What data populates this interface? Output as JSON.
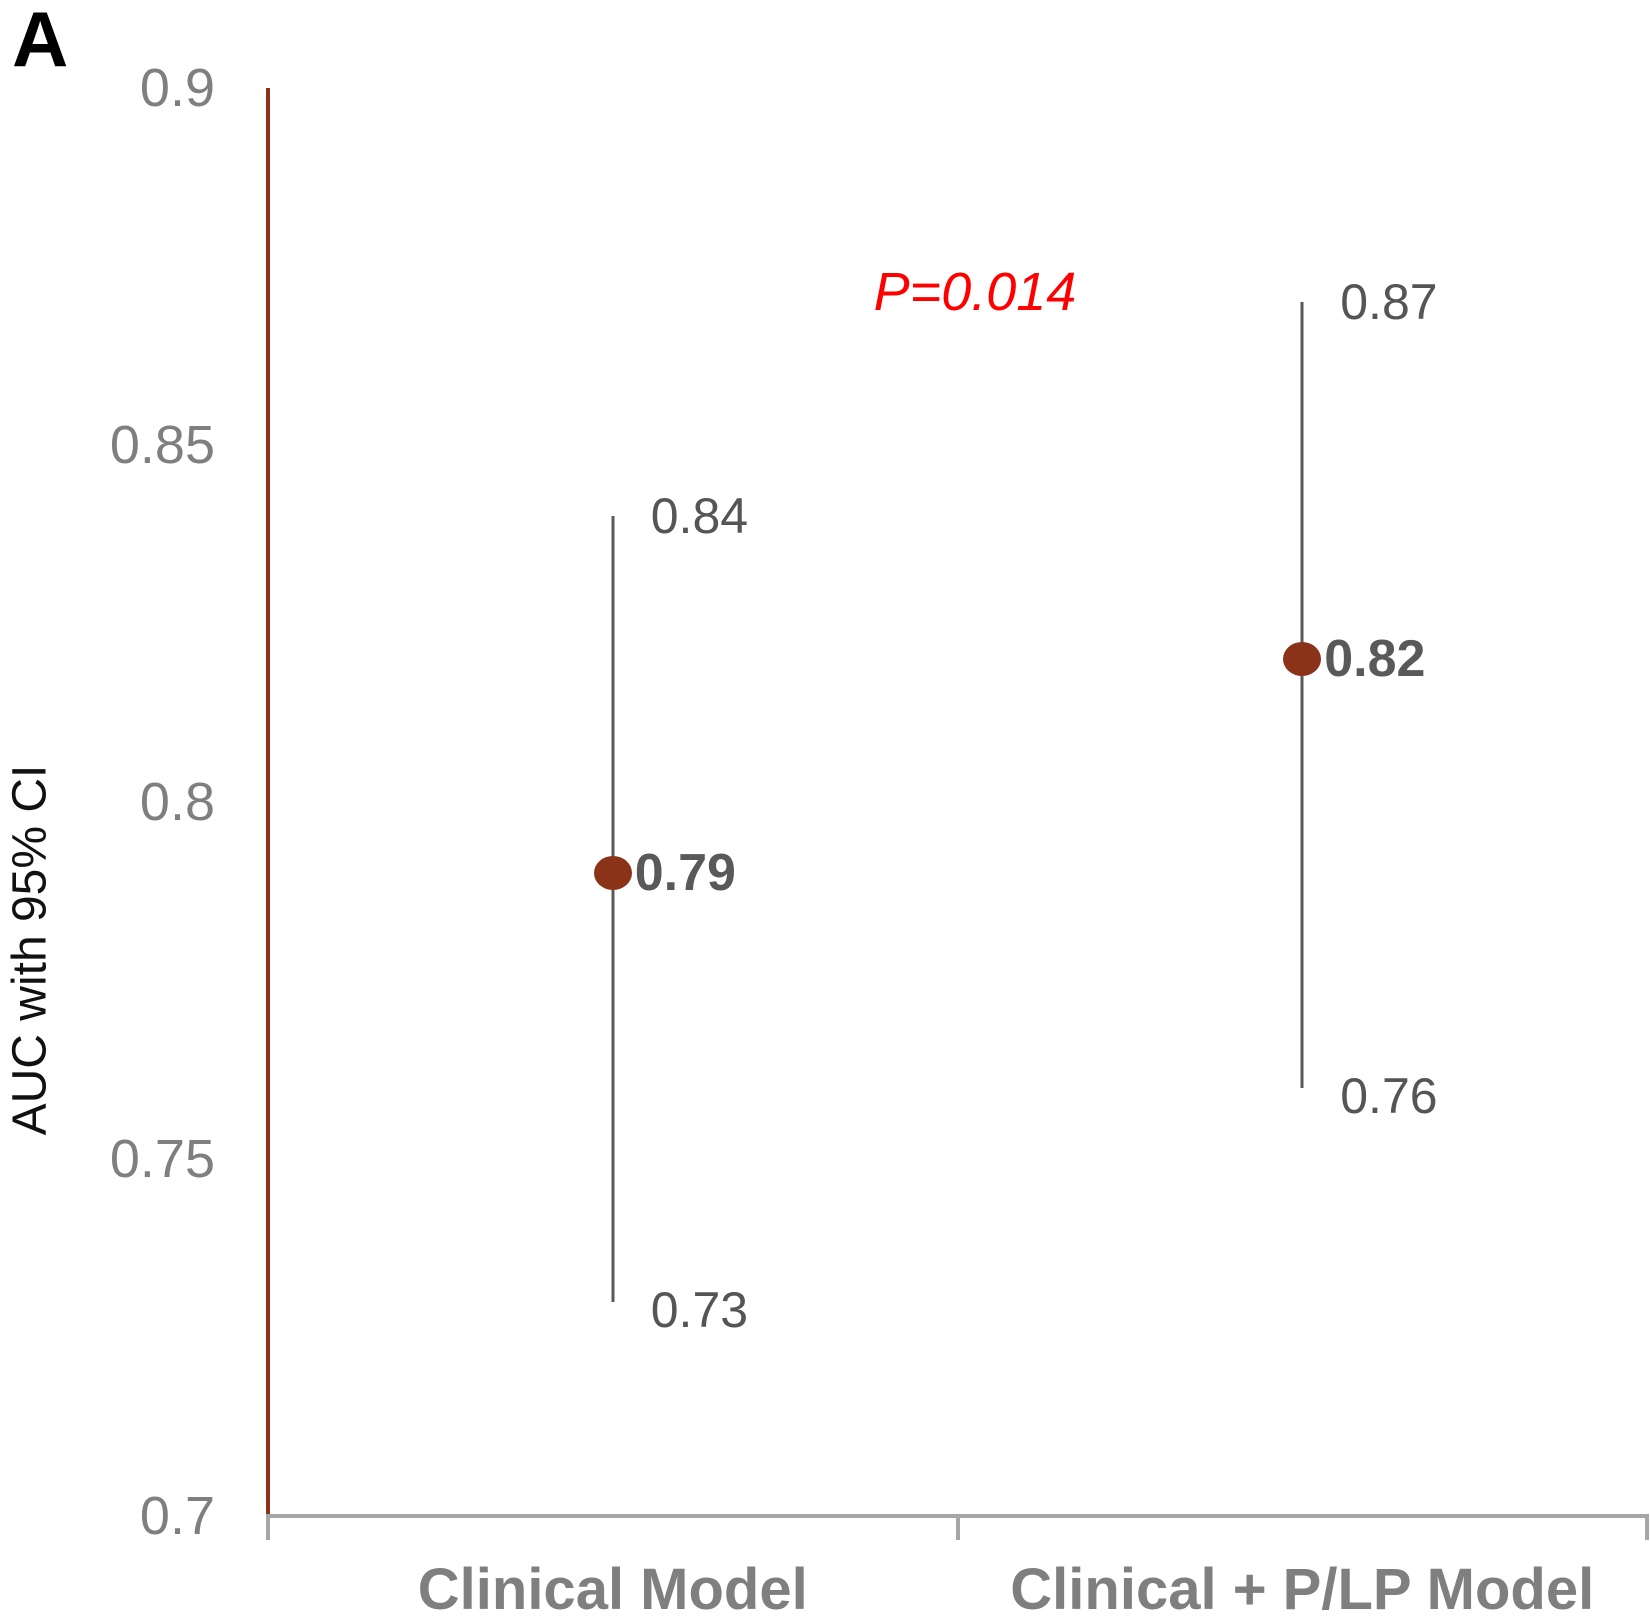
{
  "panel_label": "A",
  "annotation": {
    "p_value": "P=0.014"
  },
  "chart_data": {
    "type": "scatter",
    "subtype": "dot-with-95ci-forest",
    "title": "",
    "xlabel": "",
    "ylabel": "AUC with 95% CI",
    "ylim": [
      0.7,
      0.9
    ],
    "yticks": [
      0.9,
      0.85,
      0.8,
      0.75,
      0.7
    ],
    "ytick_labels": [
      "0.9",
      "0.85",
      "0.8",
      "0.75",
      "0.7"
    ],
    "grid": "off",
    "legend": "none",
    "categories": [
      "Clinical Model",
      "Clinical + P/LP Model"
    ],
    "series": [
      {
        "category": "Clinical Model",
        "value": 0.79,
        "value_label": "0.79",
        "ci_high": 0.84,
        "ci_high_label": "0.84",
        "ci_low": 0.73,
        "ci_low_label": "0.73"
      },
      {
        "category": "Clinical + P/LP Model",
        "value": 0.82,
        "value_label": "0.82",
        "ci_high": 0.87,
        "ci_high_label": "0.87",
        "ci_low": 0.76,
        "ci_low_label": "0.76"
      }
    ],
    "annotation_p_value": "P=0.014",
    "colors": {
      "marker": "#8B3318",
      "y_axis_line": "#8B3318",
      "x_axis_line": "#A6A6A6",
      "ci_line": "#595959",
      "tick_label": "#7F7F7F",
      "ci_label": "#555555",
      "value_label": "#595959",
      "category_label": "#7F7F7F",
      "p_value": "#FF0000",
      "panel_label": "#000000",
      "y_axis_title": "#111111"
    }
  }
}
